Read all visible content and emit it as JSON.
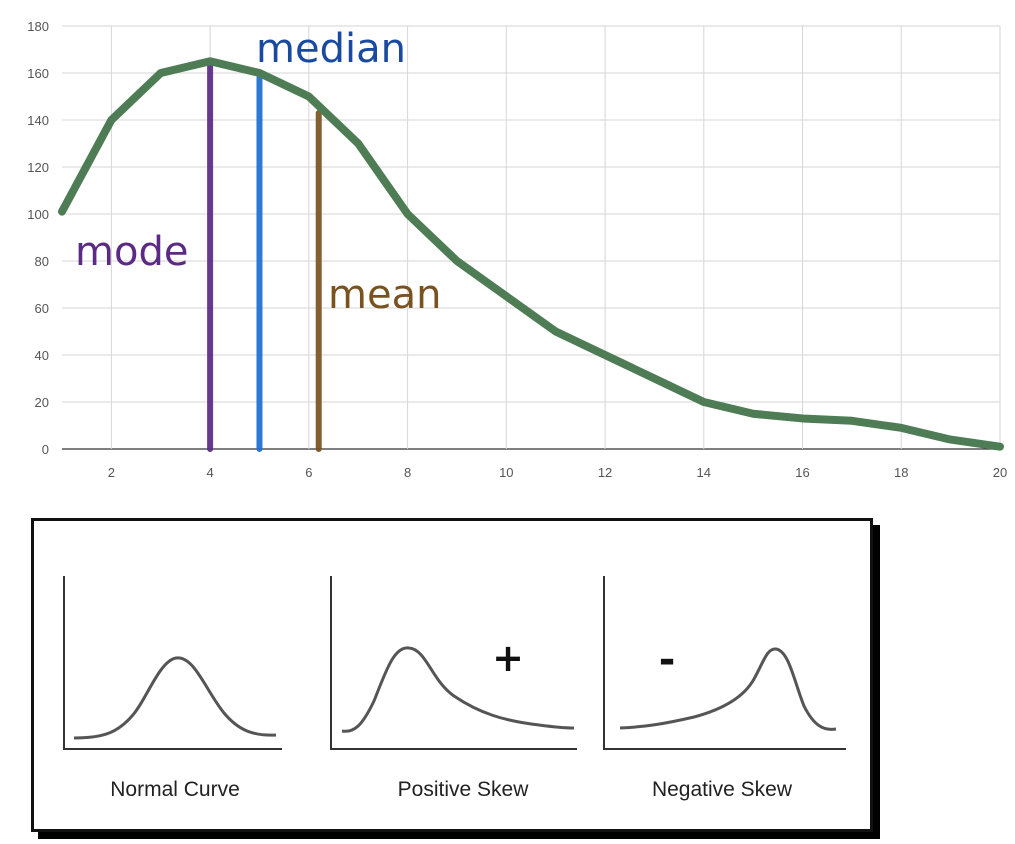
{
  "chart_data": {
    "type": "line",
    "x": [
      1,
      2,
      3,
      4,
      5,
      6,
      7,
      8,
      9,
      10,
      11,
      12,
      13,
      14,
      15,
      16,
      17,
      18,
      19,
      20
    ],
    "series": [
      {
        "values": [
          101,
          140,
          160,
          165,
          160,
          150,
          130,
          100,
          80,
          65,
          50,
          40,
          30,
          20,
          15,
          13,
          12,
          9,
          4,
          1
        ],
        "color": "#4e7d55"
      }
    ],
    "xlim": [
      1,
      20
    ],
    "ylim": [
      0,
      180
    ],
    "xticks": [
      "2",
      "4",
      "6",
      "8",
      "10",
      "12",
      "14",
      "16",
      "18",
      "20"
    ],
    "yticks": [
      "0",
      "20",
      "40",
      "60",
      "80",
      "100",
      "120",
      "140",
      "160",
      "180"
    ],
    "grid": true,
    "markers": [
      {
        "label": "mode",
        "x": 4,
        "y": 165,
        "color": "#5b2a84"
      },
      {
        "label": "median",
        "x": 5,
        "y": 158,
        "color": "#1c6fd1"
      },
      {
        "label": "mean",
        "x": 6.2,
        "y": 143,
        "color": "#7a5220"
      }
    ],
    "label_colors": {
      "mode": "#5b2a84",
      "median": "#1a4aa0",
      "mean": "#7a5220"
    }
  },
  "skew_panel": {
    "items": [
      {
        "caption": "Normal Curve",
        "sign": ""
      },
      {
        "caption": "Positive Skew",
        "sign": "+"
      },
      {
        "caption": "Negative Skew",
        "sign": "-"
      }
    ]
  }
}
